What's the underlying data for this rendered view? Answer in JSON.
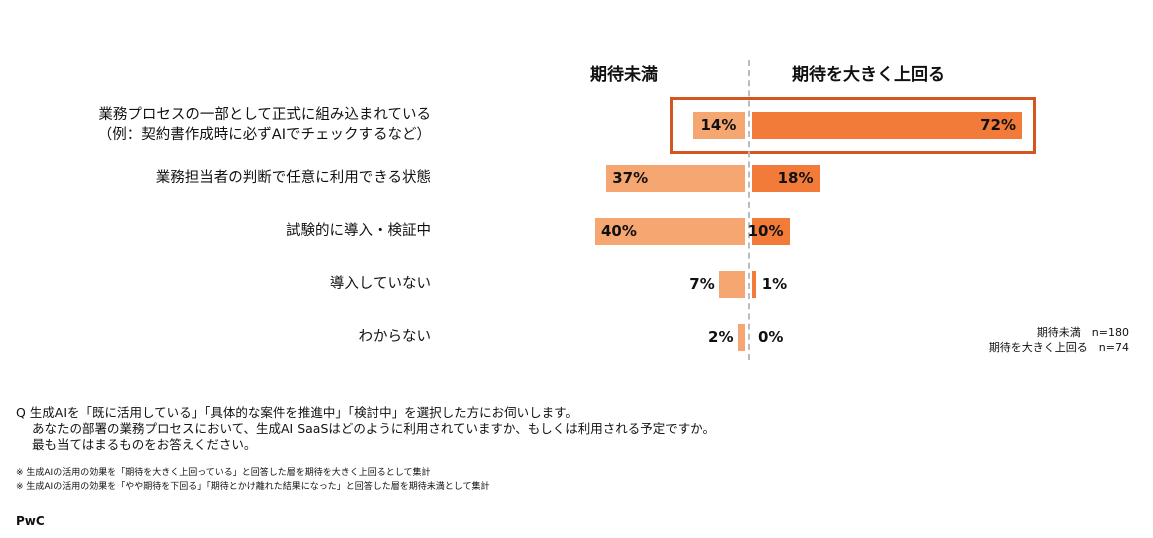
{
  "chart_data": {
    "type": "bar",
    "orientation": "horizontal-diverging",
    "categories": [
      [
        "業務プロセスの一部として正式に組み込まれている",
        "（例：契約書作成時に必ずAIでチェックするなど）"
      ],
      [
        "業務担当者の判断で任意に利用できる状態"
      ],
      [
        "試験的に導入・検証中"
      ],
      [
        "導入していない"
      ],
      [
        "わからない"
      ]
    ],
    "series": [
      {
        "name": "期待未満",
        "n": "期待未満　n=180",
        "values": [
          14,
          37,
          40,
          7,
          2
        ],
        "labels": [
          "14%",
          "37%",
          "40%",
          "7%",
          "2%"
        ],
        "color": "#F6A670",
        "side": "left"
      },
      {
        "name": "期待を大きく上回る",
        "n": "期待を大きく上回る　n=74",
        "values": [
          72,
          18,
          10,
          1,
          0
        ],
        "labels": [
          "72%",
          "18%",
          "10%",
          "1%",
          "0%"
        ],
        "color": "#F27B3A",
        "side": "right"
      }
    ],
    "highlight_color": "#D2561F",
    "unit": "%"
  },
  "question": [
    "Q  生成AIを「既に活用している」「具体的な案件を推進中」「検討中」を選択した方にお伺いします。",
    "あなたの部署の業務プロセスにおいて、生成AI SaaSはどのように利用されていますか、もしくは利用される予定ですか。",
    "最も当てはまるものをお答えください。"
  ],
  "notes": [
    "※ 生成AIの活用の効果を「期待を大きく上回っている」と回答した層を期待を大きく上回るとして集計",
    "※ 生成AIの活用の効果を「やや期待を下回る」「期待とかけ離れた結果になった」と回答した層を期待未満として集計"
  ],
  "logo": "PwC"
}
